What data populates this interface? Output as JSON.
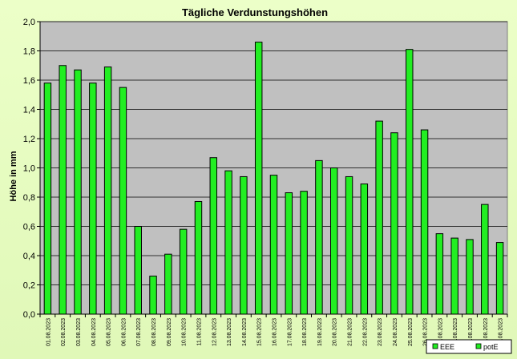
{
  "chart_data": {
    "type": "bar",
    "title": "Tägliche Verdunstungshöhen",
    "ylabel": "Höhe in mm",
    "xlabel": "",
    "ylim": [
      0,
      2.0
    ],
    "ytick_step": 0.2,
    "ytick_labels": [
      "0,0",
      "0,2",
      "0,4",
      "0,6",
      "0,8",
      "1,0",
      "1,2",
      "1,4",
      "1,6",
      "1,8",
      "2,0"
    ],
    "grid": true,
    "legend_placement": "bottom-right",
    "categories": [
      "01.08.2023",
      "02.08.2023",
      "03.08.2023",
      "04.08.2023",
      "05.08.2023",
      "06.08.2023",
      "07.08.2023",
      "08.08.2023",
      "09.08.2023",
      "10.08.2023",
      "11.08.2023",
      "12.08.2023",
      "13.08.2023",
      "14.08.2023",
      "15.08.2023",
      "16.08.2023",
      "17.08.2023",
      "18.08.2023",
      "19.08.2023",
      "20.08.2023",
      "21.08.2023",
      "22.08.2023",
      "23.08.2023",
      "24.08.2023",
      "25.08.2023",
      "26.08.2023",
      "27.08.2023",
      "28.08.2023",
      "29.08.2023",
      "30.08.2023",
      "31.08.2023"
    ],
    "series": [
      {
        "name": "potE",
        "color": "#22ee22",
        "values": [
          1.58,
          1.7,
          1.67,
          1.58,
          1.69,
          1.55,
          0.6,
          0.26,
          0.41,
          0.58,
          0.77,
          1.07,
          0.98,
          0.94,
          1.86,
          0.95,
          0.83,
          0.84,
          1.05,
          1.0,
          0.94,
          0.89,
          1.32,
          1.24,
          1.81,
          1.26,
          0.55,
          0.52,
          0.51,
          0.75,
          0.49
        ]
      }
    ],
    "legend": [
      {
        "name": "EEE",
        "color": "#22ee22"
      },
      {
        "name": "potE",
        "color": "#22ee22"
      }
    ],
    "colors": {
      "plot_background": "#c0c0c0",
      "bar": "#22ee22",
      "bar_border": "#000000",
      "page_background": "#e6fbc0"
    }
  }
}
